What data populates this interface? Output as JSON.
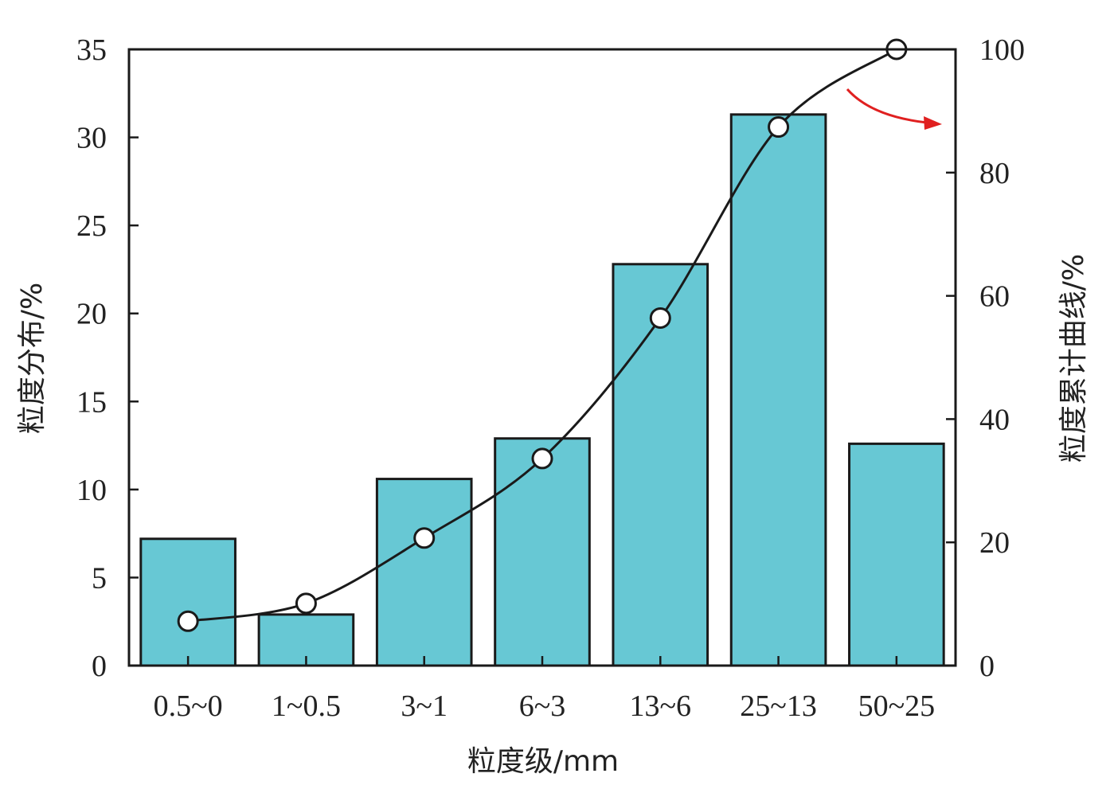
{
  "chart_data": {
    "type": "bar",
    "categories": [
      "0.5~0",
      "1~0.5",
      "3~1",
      "6~3",
      "13~6",
      "25~13",
      "50~25"
    ],
    "series": [
      {
        "type": "bar",
        "axis": "left",
        "values": [
          7.2,
          2.9,
          10.6,
          12.9,
          22.8,
          31.3,
          12.6
        ]
      },
      {
        "type": "line",
        "axis": "right",
        "values": [
          7.2,
          10.1,
          20.7,
          33.6,
          56.4,
          87.4,
          100
        ]
      }
    ],
    "xlabel": "粒度级/mm",
    "ylabel": "粒度分布/%",
    "y2label": "粒度累计曲线/%",
    "ylim": [
      0,
      35
    ],
    "y2lim": [
      0,
      100
    ],
    "yticks": [
      0,
      5,
      10,
      15,
      20,
      25,
      30,
      35
    ],
    "y2ticks": [
      0,
      20,
      40,
      60,
      80,
      100
    ],
    "annotations": [
      {
        "type": "arrow",
        "pointing": "right-axis",
        "target_series": 1
      }
    ],
    "colors": {
      "bar": "#67c8d4",
      "line": "#1a1a1a",
      "marker_fill": "#ffffff",
      "arrow": "#e02020",
      "axis": "#1a1a1a"
    },
    "grid": false,
    "legend": "none"
  }
}
